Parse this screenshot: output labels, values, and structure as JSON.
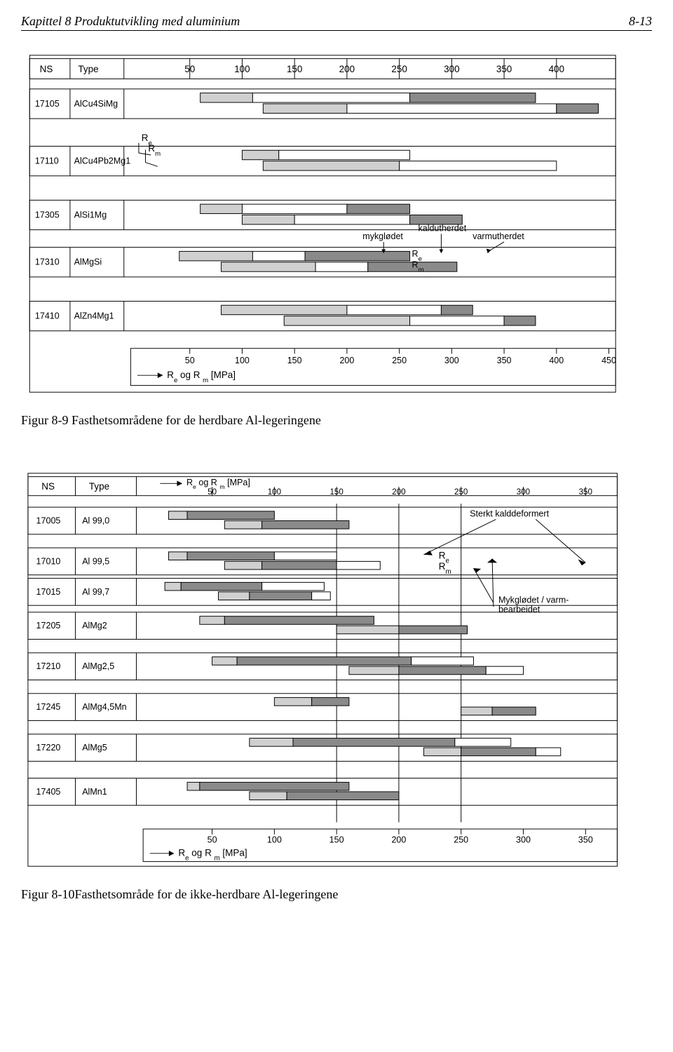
{
  "header": {
    "chapter": "Kapittel 8  Produktutvikling med aluminium",
    "page": "8-13"
  },
  "chart1": {
    "type": "range-bar",
    "border_color": "#000000",
    "background_color": "#ffffff",
    "font_family": "Arial",
    "col_label_ns": "NS",
    "col_label_type": "Type",
    "scale_ticks": [
      50,
      100,
      150,
      200,
      250,
      300,
      350,
      400
    ],
    "scale_bottom_ticks": [
      50,
      100,
      150,
      200,
      250,
      300,
      350,
      400,
      450
    ],
    "axis_label": "R",
    "axis_label_sub_e": "e",
    "axis_label_mid": " og R ",
    "axis_label_sub_m": "m",
    "axis_label_unit": " [MPa]",
    "Re_label": "R",
    "Re_sub": "e",
    "Rm_label": "R",
    "Rm_sub": "m",
    "annotations": {
      "mykglodet": "mykglødet",
      "kaldutherdet": "kaldutherdet",
      "varmutherdet": "varmutherdet"
    },
    "colors": {
      "light": "#d0d0d0",
      "dark": "#8a8a8a",
      "white": "#ffffff",
      "border": "#000000"
    },
    "groups": [
      {
        "ns": "17105",
        "type": "AlCu4SiMg",
        "re": {
          "light": [
            60,
            110
          ],
          "white": [
            110,
            260
          ],
          "dark": [
            260,
            380
          ]
        },
        "rm": {
          "light": [
            120,
            200
          ],
          "white": [
            200,
            400
          ],
          "dark": [
            400,
            440
          ]
        }
      },
      {
        "ns": "17110",
        "type": "AlCu4Pb2Mg1",
        "re": {
          "light": [
            100,
            135
          ],
          "white": [
            135,
            260
          ]
        },
        "rm": {
          "light": [
            120,
            250
          ],
          "white": [
            250,
            400
          ]
        }
      },
      {
        "ns": "17305",
        "type": "AlSi1Mg",
        "re": {
          "light": [
            60,
            100
          ],
          "white": [
            100,
            200
          ],
          "dark": [
            200,
            260
          ]
        },
        "rm": {
          "light": [
            100,
            150
          ],
          "white": [
            150,
            260
          ],
          "dark": [
            260,
            310
          ]
        }
      },
      {
        "ns": "17310",
        "type": "AlMgSi",
        "re": {
          "light": [
            40,
            110
          ],
          "white": [
            110,
            160
          ],
          "dark": [
            160,
            260
          ]
        },
        "rm": {
          "light": [
            80,
            170
          ],
          "white": [
            170,
            220
          ],
          "dark": [
            220,
            305
          ]
        }
      },
      {
        "ns": "17410",
        "type": "AlZn4Mg1",
        "re": {
          "light": [
            80,
            200
          ],
          "white": [
            200,
            290
          ],
          "dark": [
            290,
            320
          ]
        },
        "rm": {
          "light": [
            140,
            260
          ],
          "white": [
            260,
            350
          ],
          "dark": [
            350,
            380
          ]
        }
      }
    ]
  },
  "caption1": "Figur 8-9 Fasthetsområdene for de herdbare Al-legeringene",
  "chart2": {
    "type": "range-bar",
    "border_color": "#000000",
    "background_color": "#ffffff",
    "font_family": "Arial",
    "col_label_ns": "NS",
    "col_label_type": "Type",
    "scale_ticks": [
      50,
      100,
      150,
      200,
      250,
      300,
      350
    ],
    "axis_label": "R",
    "axis_label_sub_e": "e",
    "axis_label_mid": " og R ",
    "axis_label_sub_m": "m",
    "axis_label_unit": " [MPa]",
    "Re_label": "R",
    "Re_sub": "e",
    "Rm_label": "R",
    "Rm_sub": "m",
    "annotations": {
      "sterkt": "Sterkt  kalddeformert",
      "mykglodet": "Mykglødet / varm-\nbearbeidet"
    },
    "colors": {
      "light": "#d0d0d0",
      "dark": "#8a8a8a",
      "white": "#ffffff",
      "border": "#000000"
    },
    "rows": [
      {
        "ns": "17005",
        "type": "Al 99,0",
        "re": {
          "light": [
            15,
            30
          ],
          "dark": [
            30,
            100
          ]
        },
        "rm": {
          "light": [
            60,
            90
          ],
          "dark": [
            90,
            160
          ]
        }
      },
      {
        "ns": "17010",
        "type": "Al 99,5",
        "re": {
          "light": [
            15,
            30
          ],
          "dark": [
            30,
            100
          ],
          "white": [
            100,
            150
          ]
        },
        "rm": {
          "light": [
            60,
            90
          ],
          "dark": [
            90,
            150
          ],
          "white": [
            150,
            185
          ]
        }
      },
      {
        "ns": "17015",
        "type": "Al 99,7",
        "re": {
          "light": [
            12,
            25
          ],
          "dark": [
            25,
            90
          ],
          "white": [
            90,
            140
          ]
        },
        "rm": {
          "light": [
            55,
            80
          ],
          "dark": [
            80,
            130
          ],
          "white": [
            130,
            145
          ]
        }
      },
      {
        "ns": "17205",
        "type": "AlMg2",
        "re": {
          "light": [
            40,
            60
          ],
          "dark": [
            60,
            180
          ]
        },
        "rm": {
          "light": [
            150,
            200
          ],
          "dark": [
            200,
            255
          ]
        }
      },
      {
        "ns": "17210",
        "type": "AlMg2,5",
        "re": {
          "light": [
            50,
            70
          ],
          "dark": [
            70,
            210
          ],
          "white": [
            210,
            260
          ]
        },
        "rm": {
          "light": [
            160,
            200
          ],
          "dark": [
            200,
            270
          ],
          "white": [
            270,
            300
          ]
        }
      },
      {
        "ns": "17245",
        "type": "AlMg4,5Mn",
        "re": {
          "light": [
            100,
            130
          ],
          "dark": [
            130,
            160
          ]
        },
        "rm": {
          "light": [
            250,
            275
          ],
          "dark": [
            275,
            310
          ]
        }
      },
      {
        "ns": "17220",
        "type": "AlMg5",
        "re": {
          "light": [
            80,
            115
          ],
          "dark": [
            115,
            245
          ],
          "white": [
            245,
            290
          ]
        },
        "rm": {
          "light": [
            220,
            250
          ],
          "dark": [
            250,
            310
          ],
          "white": [
            310,
            330
          ]
        }
      },
      {
        "ns": "17405",
        "type": "AlMn1",
        "re": {
          "light": [
            30,
            40
          ],
          "dark": [
            40,
            160
          ]
        },
        "rm": {
          "light": [
            80,
            110
          ],
          "dark": [
            110,
            200
          ]
        }
      }
    ]
  },
  "caption2": "Figur 8-10Fasthetsområde for de ikke-herdbare Al-legeringene"
}
